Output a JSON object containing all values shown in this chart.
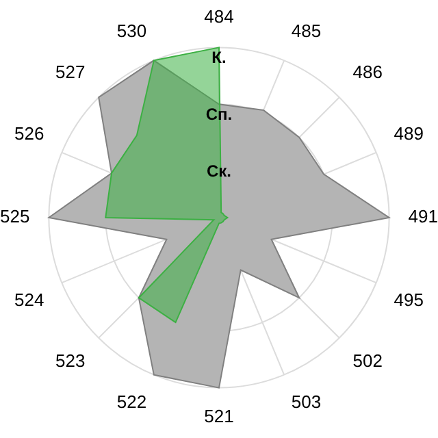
{
  "chart_data": {
    "type": "radar",
    "categories": [
      "484",
      "485",
      "486",
      "489",
      "491",
      "495",
      "502",
      "503",
      "521",
      "522",
      "523",
      "524",
      "525",
      "526",
      "527",
      "530"
    ],
    "series": [
      {
        "color": "#b4b4b4",
        "values": [
          2.0,
          2.05,
          2.0,
          2.0,
          3.0,
          1.0,
          2.0,
          1.0,
          3.0,
          3.0,
          2.0,
          1.0,
          3.0,
          2.05,
          3.0,
          3.0
        ]
      },
      {
        "color": "#3cb043",
        "values": [
          3.0,
          0.1,
          0.1,
          0.1,
          0.15,
          0.1,
          0.1,
          0.1,
          0.1,
          2.0,
          2.0,
          0.1,
          2.0,
          2.05,
          2.05,
          3.0
        ]
      }
    ],
    "ylim": [
      0,
      3
    ],
    "yticks": [
      {
        "value": 1,
        "label": "Ск."
      },
      {
        "value": 2,
        "label": "Сп."
      },
      {
        "value": 3,
        "label": "К."
      }
    ],
    "grid": true,
    "legend": false,
    "marker": "none"
  }
}
